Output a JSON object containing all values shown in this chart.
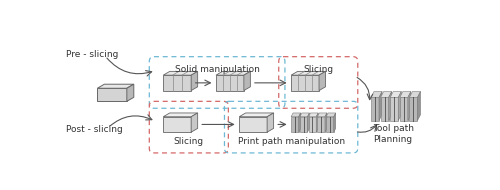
{
  "bg_color": "#ffffff",
  "text_color": "#333333",
  "labels": {
    "pre_slicing": "Pre - slicing",
    "post_slicing": "Post - slicing",
    "solid_manip": "Solid manipulation",
    "slicing_top": "Slicing",
    "slicing_bot": "Slicing",
    "print_path": "Print path manipulation",
    "tool_path": "Tool path\nPlanning"
  },
  "dash_blue": "#6db8d4",
  "dash_pink": "#d46868",
  "arrow_color": "#555555",
  "font_size": 6.5,
  "ec_box": "#666666",
  "fc_front_gray": "#d4d4d4",
  "fc_top_gray": "#e8e8e8",
  "fc_side_gray": "#b8b8b8",
  "fc_front_light": "#e0e0e0",
  "fc_top_light": "#efefef",
  "fc_side_light": "#c8c8c8",
  "line_color_diag": "#888888",
  "slice_dark": "#555555"
}
